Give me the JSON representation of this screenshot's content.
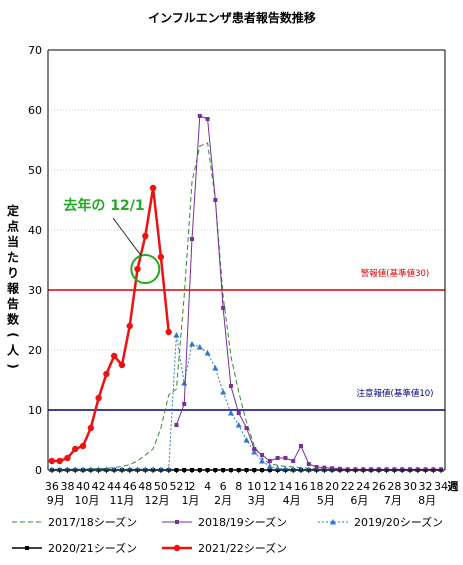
{
  "chart_data": {
    "type": "line",
    "title": "インフルエンザ患者報告数推移",
    "ylabel": "定点当たり報告数(人)",
    "xlabel": "週",
    "ylim": [
      0,
      70
    ],
    "yticks": [
      0,
      10,
      20,
      30,
      40,
      50,
      60,
      70
    ],
    "x_week_ticks": [
      "36",
      "38",
      "40",
      "42",
      "44",
      "46",
      "48",
      "50",
      "52",
      "2",
      "4",
      "6",
      "8",
      "10",
      "12",
      "14",
      "16",
      "18",
      "20",
      "22",
      "24",
      "26",
      "28",
      "30",
      "32",
      "34"
    ],
    "x_week_tick_pos": [
      0,
      2,
      4,
      6,
      8,
      10,
      12,
      14,
      16,
      18,
      20,
      22,
      24,
      26,
      28,
      30,
      32,
      34,
      36,
      38,
      40,
      42,
      44,
      46,
      48,
      50
    ],
    "x_extra_tick": {
      "label": "1",
      "pos": 17
    },
    "x_month_labels": [
      {
        "label": "9月",
        "pos": 0.5
      },
      {
        "label": "10月",
        "pos": 4.5
      },
      {
        "label": "11月",
        "pos": 9
      },
      {
        "label": "12月",
        "pos": 13.5
      },
      {
        "label": "1月",
        "pos": 17.8
      },
      {
        "label": "2月",
        "pos": 22
      },
      {
        "label": "3月",
        "pos": 26.3
      },
      {
        "label": "4月",
        "pos": 30.8
      },
      {
        "label": "5月",
        "pos": 35.2
      },
      {
        "label": "6月",
        "pos": 39.5
      },
      {
        "label": "7月",
        "pos": 43.8
      },
      {
        "label": "8月",
        "pos": 48.2
      }
    ],
    "reference_lines": [
      {
        "label": "警報値(基準値30)",
        "value": 30,
        "color": "#dd0000"
      },
      {
        "label": "注意報値(基準値10)",
        "value": 10,
        "color": "#000080"
      }
    ],
    "annotation": {
      "text": "去年の 12/1",
      "color": "#22aa22",
      "circle_x": 12,
      "circle_y": 33.5
    },
    "series": [
      {
        "name": "2017/18シーズン",
        "color": "#2e8b2e",
        "style": "dashed",
        "marker": "none",
        "values": [
          0.1,
          0.1,
          0.1,
          0.1,
          0.1,
          0.2,
          0.2,
          0.3,
          0.4,
          0.6,
          0.9,
          1.5,
          2.5,
          3.5,
          7,
          12.5,
          13.5,
          29,
          48,
          54,
          54.5,
          45,
          29,
          19,
          13,
          8,
          4,
          2,
          1,
          0.8,
          0.6,
          0.5,
          0.4,
          0.3,
          0.2,
          0.2,
          0.1,
          0.1,
          0.1,
          0.1,
          0.1,
          0.1,
          0.1,
          0.1,
          0.1,
          0.1,
          0.1,
          0.1,
          0.1,
          0.1,
          0.1
        ]
      },
      {
        "name": "2018/19シーズン",
        "color": "#7a2e9a",
        "style": "solid",
        "marker": "square",
        "values": [
          null,
          null,
          null,
          null,
          null,
          null,
          null,
          null,
          null,
          null,
          null,
          null,
          null,
          null,
          null,
          null,
          7.5,
          11,
          38.5,
          59,
          58.5,
          45,
          27,
          14,
          9.5,
          7,
          3.5,
          2.5,
          1.5,
          2,
          2,
          1.5,
          4,
          1,
          0.5,
          0.4,
          0.3,
          0.2,
          0.1,
          0.1,
          0.1,
          0.1,
          0.1,
          0.1,
          0.1,
          0.1,
          0.1,
          0.1,
          0.1,
          0.1,
          0.1
        ]
      },
      {
        "name": "2019/20シーズン",
        "color": "#2e78c8",
        "style": "dotted",
        "marker": "triangle",
        "values": [
          0.1,
          0.1,
          0.1,
          0.1,
          0.1,
          0.1,
          0.1,
          0.1,
          0.1,
          0.1,
          0.1,
          0.1,
          0.1,
          0.1,
          0.1,
          0.1,
          22.5,
          14.5,
          21,
          20.5,
          19.5,
          17,
          13,
          9.5,
          7.5,
          5,
          3,
          1.5,
          0.6,
          0.3,
          0.2,
          0.1,
          0.1,
          0.1,
          0.1,
          0.1,
          0.1,
          0.1,
          0.1,
          0.1,
          0.1,
          0.1,
          0.1,
          0.1,
          0.1,
          0.1,
          0.1,
          0.1,
          0.1,
          0.1,
          0.1
        ]
      },
      {
        "name": "2020/21シーズン",
        "color": "#000000",
        "style": "solid",
        "marker": "square",
        "values": [
          0,
          0,
          0,
          0,
          0,
          0,
          0,
          0,
          0,
          0,
          0,
          0,
          0,
          0,
          0,
          0,
          0,
          0,
          0,
          0,
          0,
          0,
          0,
          0,
          0,
          0,
          0,
          0,
          0,
          0,
          0,
          0,
          0,
          0,
          0,
          0,
          0,
          0,
          0,
          0,
          0,
          0,
          0,
          0,
          0,
          0,
          0,
          0,
          0,
          0,
          0
        ]
      },
      {
        "name": "2021/22シーズン",
        "color": "#ee1111",
        "style": "solid",
        "marker": "circle",
        "values": [
          1.5,
          1.5,
          2,
          3.5,
          4,
          7,
          12,
          16,
          19,
          17.5,
          24,
          33.5,
          39,
          47,
          35.5,
          23
        ]
      }
    ]
  }
}
